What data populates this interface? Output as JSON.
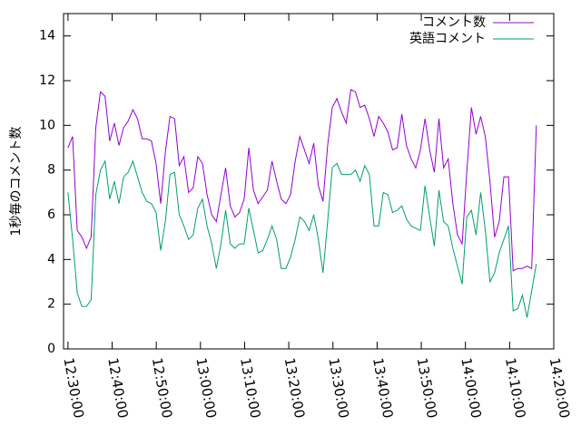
{
  "chart_data": {
    "type": "line",
    "ylabel": "1秒毎のコメント数",
    "x": [
      "12:30:00",
      "12:31:03",
      "12:32:06",
      "12:33:09",
      "12:34:12",
      "12:35:15",
      "12:36:18",
      "12:37:21",
      "12:38:24",
      "12:39:27",
      "12:40:30",
      "12:41:33",
      "12:42:36",
      "12:43:39",
      "12:44:42",
      "12:45:45",
      "12:46:48",
      "12:47:51",
      "12:48:54",
      "12:49:57",
      "12:51:00",
      "12:52:03",
      "12:53:06",
      "12:54:09",
      "12:55:12",
      "12:56:15",
      "12:57:18",
      "12:58:21",
      "12:59:24",
      "13:00:27",
      "13:01:30",
      "13:02:33",
      "13:03:36",
      "13:04:39",
      "13:05:42",
      "13:06:45",
      "13:07:48",
      "13:08:51",
      "13:09:54",
      "13:10:57",
      "13:12:00",
      "13:13:03",
      "13:14:06",
      "13:15:09",
      "13:16:12",
      "13:17:15",
      "13:18:18",
      "13:19:21",
      "13:20:24",
      "13:21:27",
      "13:22:30",
      "13:23:33",
      "13:24:36",
      "13:25:39",
      "13:26:42",
      "13:27:45",
      "13:28:48",
      "13:29:51",
      "13:30:54",
      "13:31:57",
      "13:33:00",
      "13:34:03",
      "13:35:06",
      "13:36:09",
      "13:37:12",
      "13:38:15",
      "13:39:18",
      "13:40:21",
      "13:41:24",
      "13:42:27",
      "13:43:30",
      "13:44:33",
      "13:45:36",
      "13:46:39",
      "13:47:42",
      "13:48:45",
      "13:49:48",
      "13:50:51",
      "13:51:54",
      "13:52:57",
      "13:54:00",
      "13:55:03",
      "13:56:06",
      "13:57:09",
      "13:58:12",
      "13:59:15",
      "14:00:18",
      "14:01:21",
      "14:02:24",
      "14:03:27",
      "14:04:30",
      "14:05:33",
      "14:06:36",
      "14:07:39",
      "14:08:42",
      "14:09:45",
      "14:10:48",
      "14:11:51",
      "14:12:54",
      "14:13:57",
      "14:15:00",
      "14:16:03"
    ],
    "series": [
      {
        "name": "コメント数",
        "color": "#9400d3",
        "values": [
          9.0,
          9.5,
          5.3,
          5.0,
          4.5,
          5.0,
          9.9,
          11.5,
          11.3,
          9.3,
          10.1,
          9.1,
          9.9,
          10.2,
          10.7,
          10.3,
          9.4,
          9.4,
          9.3,
          8.3,
          6.5,
          8.8,
          10.4,
          10.3,
          8.2,
          8.6,
          7.0,
          7.2,
          8.6,
          8.3,
          6.9,
          6.0,
          5.7,
          6.9,
          8.1,
          6.4,
          5.9,
          6.1,
          6.7,
          9.0,
          7.1,
          6.5,
          6.8,
          7.1,
          8.4,
          7.5,
          6.7,
          6.5,
          6.9,
          8.4,
          9.5,
          8.9,
          8.3,
          9.2,
          7.3,
          6.6,
          9.1,
          10.8,
          11.2,
          10.6,
          10.1,
          11.6,
          11.5,
          10.8,
          10.9,
          10.3,
          9.5,
          10.4,
          10.1,
          9.7,
          8.9,
          9.0,
          10.5,
          9.1,
          8.5,
          8.1,
          8.9,
          10.3,
          8.9,
          7.9,
          10.3,
          8.1,
          8.5,
          6.5,
          5.1,
          4.7,
          7.9,
          10.8,
          9.6,
          10.4,
          9.5,
          7.5,
          5.0,
          5.7,
          7.7,
          7.7,
          3.5,
          3.6,
          3.6,
          3.7,
          3.6,
          10.0
        ]
      },
      {
        "name": "英語コメント",
        "color": "#009e73",
        "values": [
          7.0,
          4.9,
          2.5,
          1.9,
          1.9,
          2.2,
          6.9,
          8.0,
          8.4,
          6.7,
          7.5,
          6.5,
          7.7,
          7.9,
          8.4,
          7.7,
          7.0,
          6.6,
          6.5,
          6.1,
          4.4,
          5.7,
          7.8,
          7.9,
          6.0,
          5.5,
          4.9,
          5.1,
          6.3,
          6.7,
          5.5,
          4.7,
          3.6,
          4.7,
          6.2,
          4.7,
          4.5,
          4.7,
          4.7,
          6.3,
          5.3,
          4.3,
          4.4,
          4.9,
          5.5,
          4.9,
          3.6,
          3.6,
          4.1,
          4.9,
          5.9,
          5.7,
          5.3,
          6.0,
          4.9,
          3.4,
          5.7,
          8.1,
          8.3,
          7.8,
          7.8,
          7.8,
          8.0,
          7.5,
          8.2,
          7.8,
          5.5,
          5.5,
          7.0,
          6.9,
          6.1,
          6.2,
          6.4,
          5.8,
          5.5,
          5.4,
          5.3,
          7.3,
          5.9,
          4.6,
          7.1,
          5.7,
          5.5,
          4.5,
          3.7,
          2.9,
          5.9,
          6.2,
          5.1,
          7.0,
          5.3,
          3.0,
          3.4,
          4.3,
          4.9,
          5.5,
          1.7,
          1.8,
          2.4,
          1.4,
          2.6,
          3.8
        ]
      }
    ],
    "xlim": [
      "12:29:00",
      "14:20:00"
    ],
    "xticks": [
      "12:30:00",
      "12:40:00",
      "12:50:00",
      "13:00:00",
      "13:10:00",
      "13:20:00",
      "13:30:00",
      "13:40:00",
      "13:50:00",
      "14:00:00",
      "14:10:00",
      "14:20:00"
    ],
    "ylim": [
      0,
      15
    ],
    "yticks": [
      0,
      2,
      4,
      6,
      8,
      10,
      12,
      14
    ],
    "legend": "top-right"
  }
}
